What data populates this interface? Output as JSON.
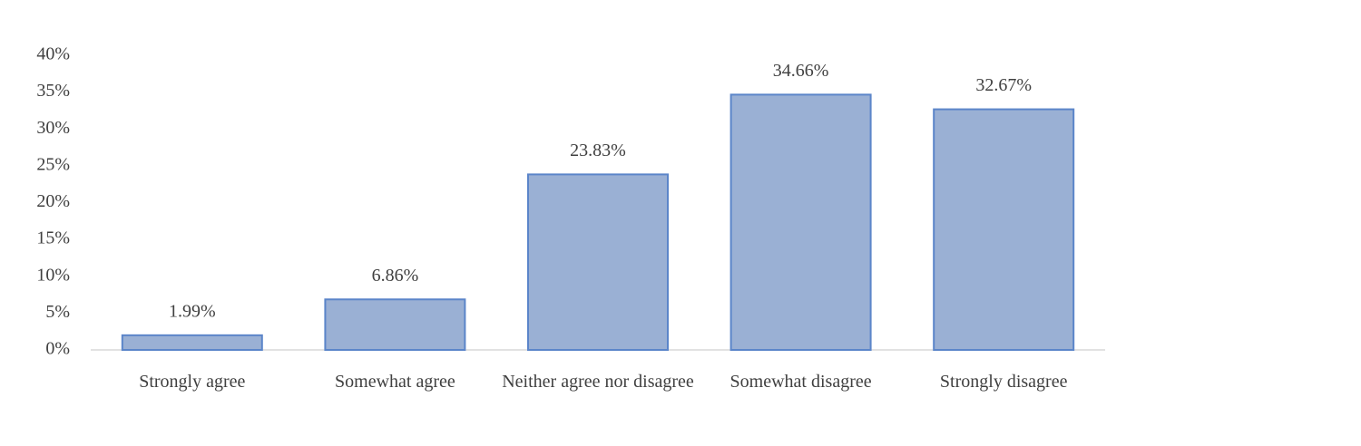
{
  "chart_data": {
    "type": "bar",
    "categories": [
      "Strongly agree",
      "Somewhat agree",
      "Neither agree nor disagree",
      "Somewhat disagree",
      "Strongly disagree"
    ],
    "values": [
      1.99,
      6.86,
      23.83,
      34.66,
      32.67
    ],
    "value_labels": [
      "1.99%",
      "6.86%",
      "23.83%",
      "34.66%",
      "32.67%"
    ],
    "color": "#9ab0d4",
    "edge_color": "#5b85c9",
    "ylim": [
      0,
      40
    ],
    "yticks": [
      {
        "value": 0,
        "label": "0%"
      },
      {
        "value": 5,
        "label": "5%"
      },
      {
        "value": 10,
        "label": "10%"
      },
      {
        "value": 15,
        "label": "15%"
      },
      {
        "value": 20,
        "label": "20%"
      },
      {
        "value": 25,
        "label": "25%"
      },
      {
        "value": 30,
        "label": "30%"
      },
      {
        "value": 35,
        "label": "35%"
      },
      {
        "value": 40,
        "label": "40%"
      }
    ],
    "grid": false
  }
}
